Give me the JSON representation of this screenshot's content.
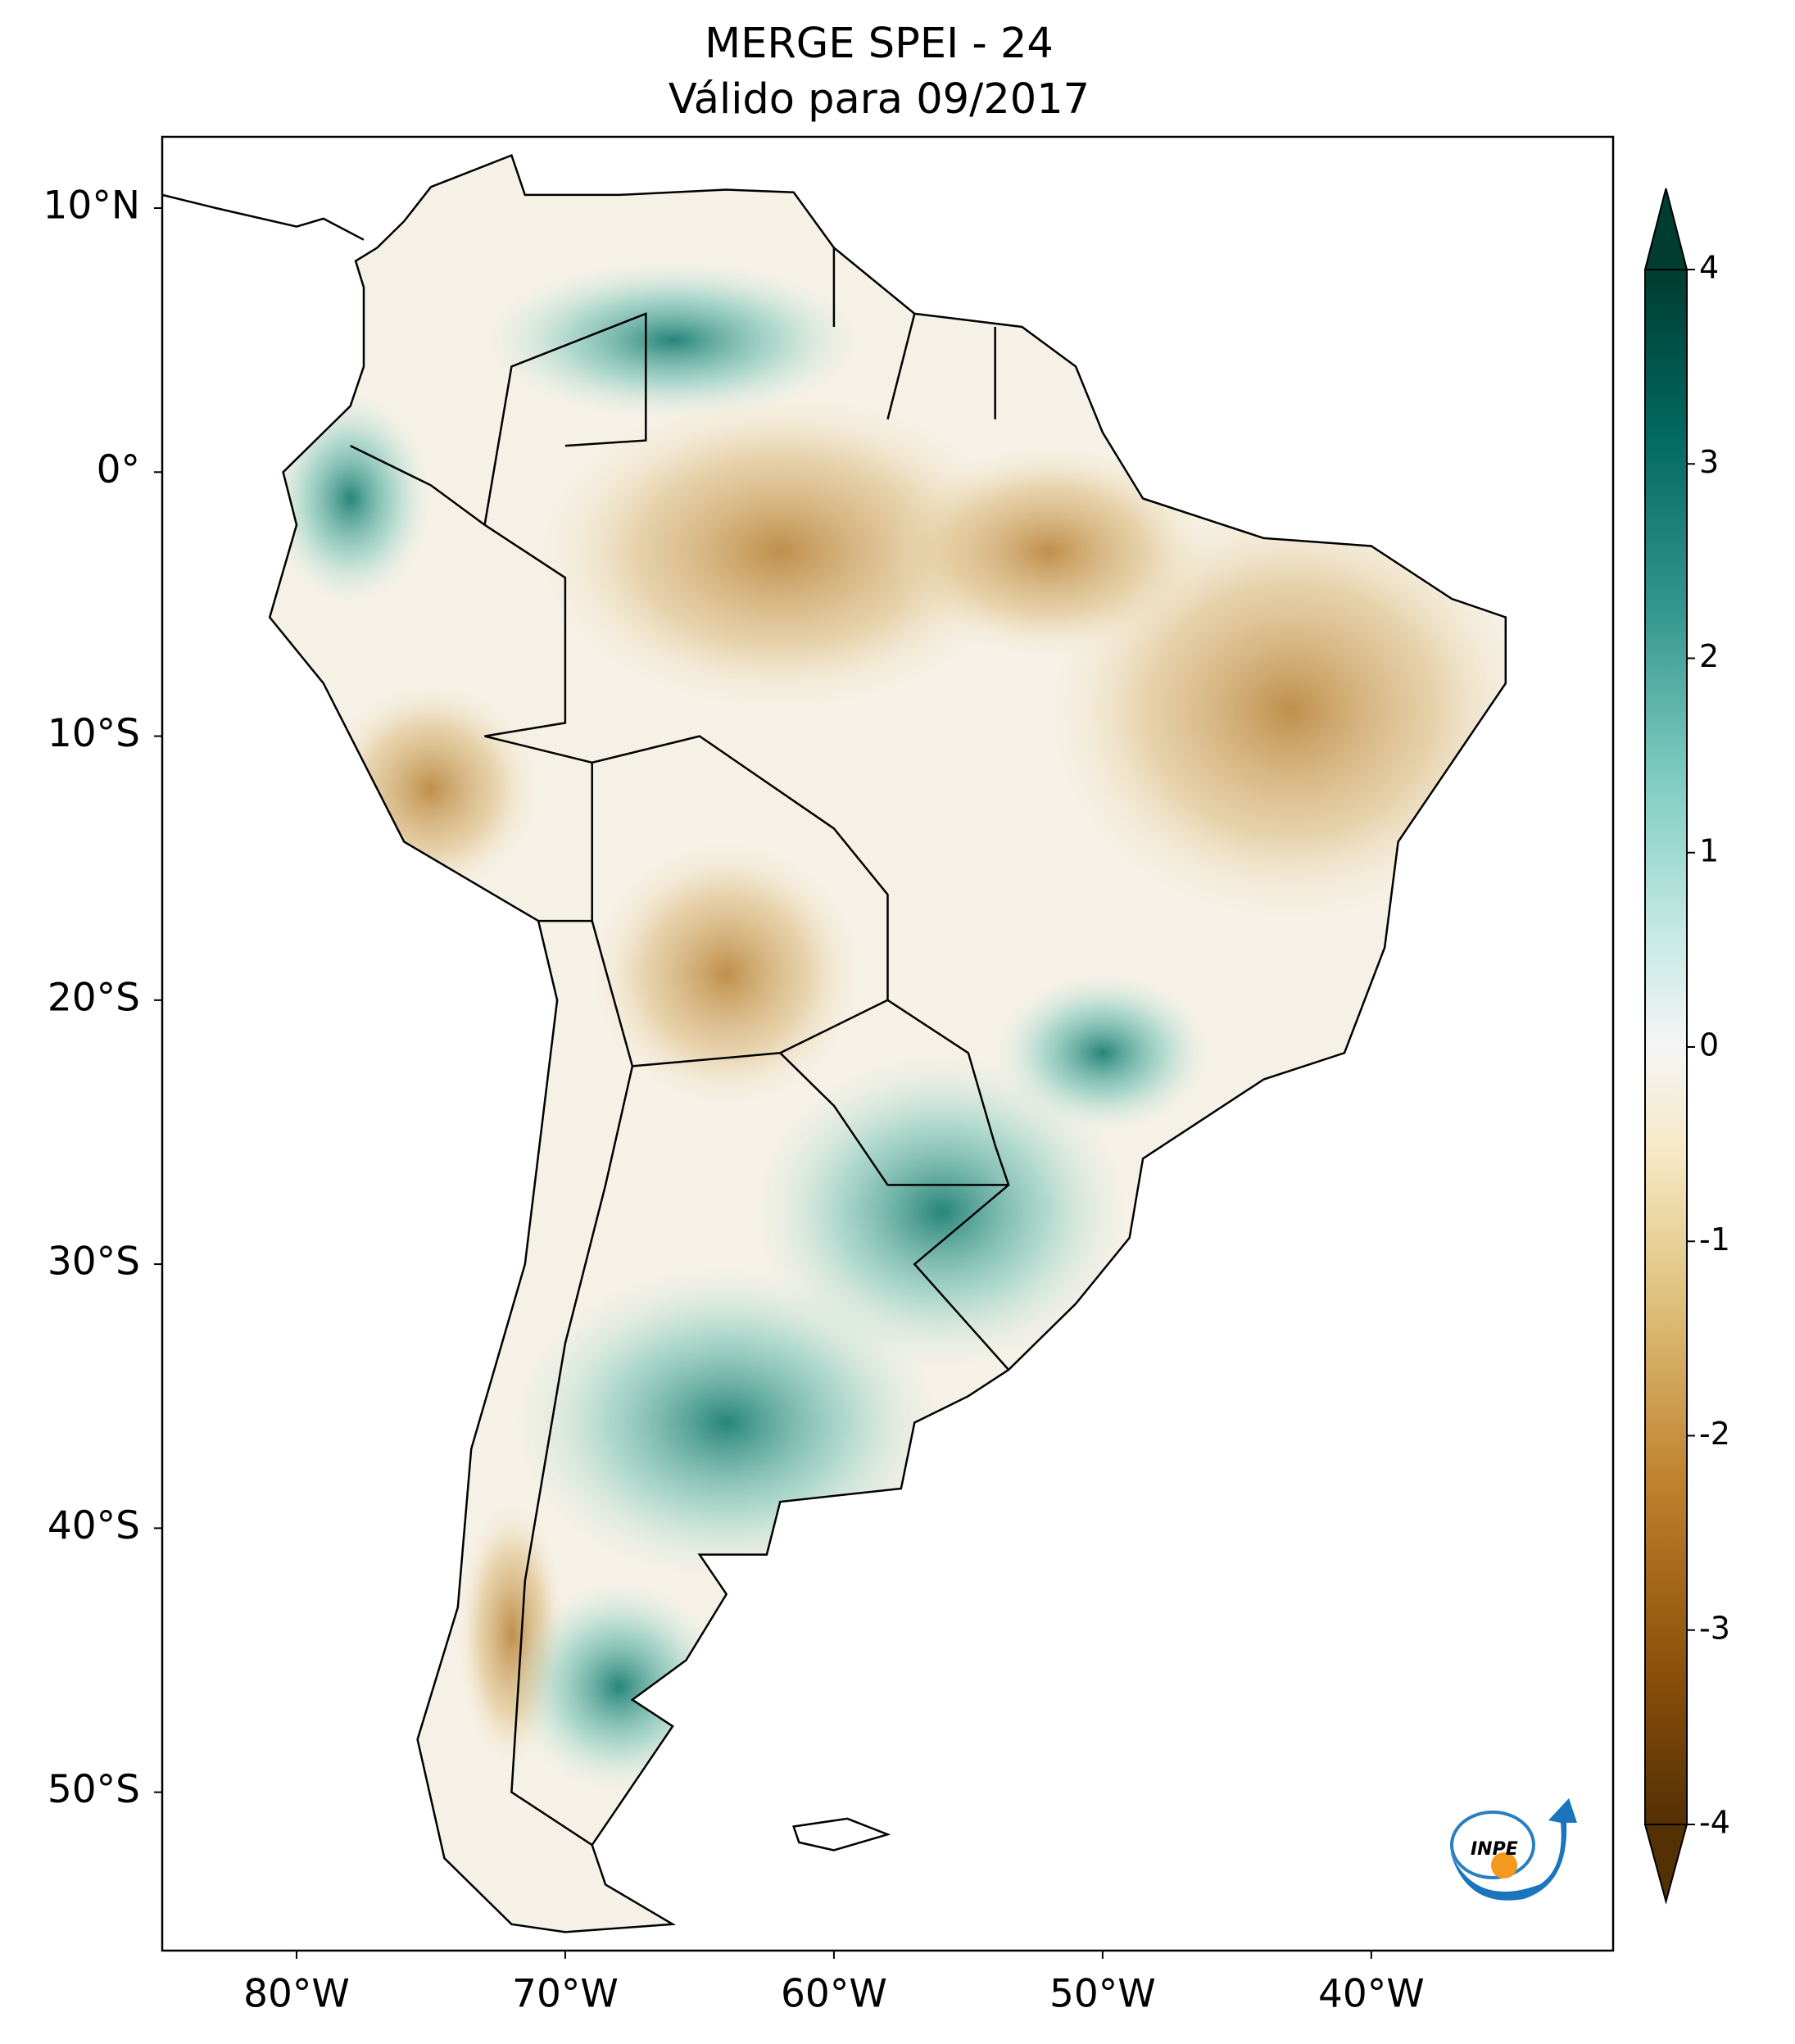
{
  "title": [
    "MERGE   SPEI - 24",
    "Válido para 09/2017"
  ],
  "map": {
    "xlim": [
      -85,
      -31
    ],
    "ylim": [
      -56,
      12.7
    ],
    "xticks": [
      {
        "value": -80,
        "label": "80°W"
      },
      {
        "value": -70,
        "label": "70°W"
      },
      {
        "value": -60,
        "label": "60°W"
      },
      {
        "value": -50,
        "label": "50°W"
      },
      {
        "value": -40,
        "label": "40°W"
      }
    ],
    "yticks": [
      {
        "value": 10,
        "label": "10°N"
      },
      {
        "value": 0,
        "label": "0°"
      },
      {
        "value": -10,
        "label": "10°S"
      },
      {
        "value": -20,
        "label": "20°S"
      },
      {
        "value": -30,
        "label": "30°S"
      },
      {
        "value": -40,
        "label": "40°S"
      },
      {
        "value": -50,
        "label": "50°S"
      }
    ]
  },
  "colorbar": {
    "lim": [
      -4,
      4
    ],
    "ticks": [
      4,
      3,
      2,
      1,
      0,
      -1,
      -2,
      -3,
      -4
    ]
  },
  "logo": "INPE"
}
